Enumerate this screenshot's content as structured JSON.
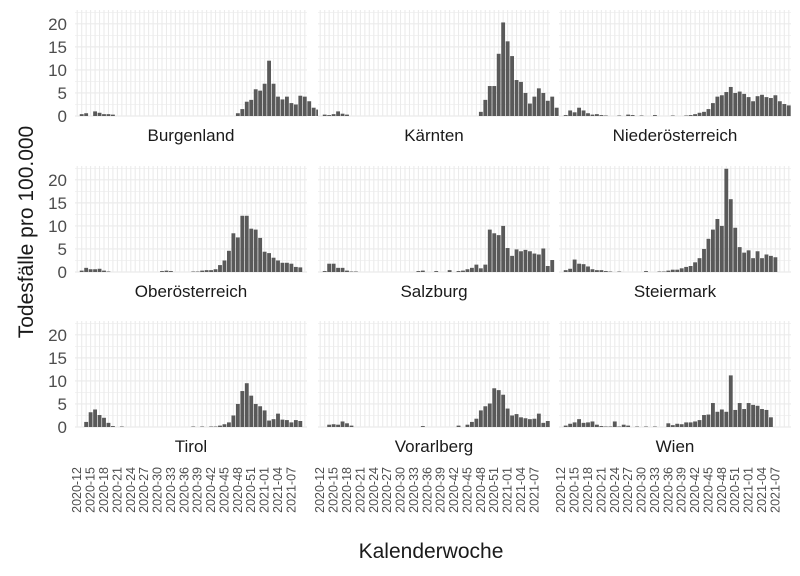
{
  "chart_data": {
    "type": "bar",
    "layout": "facet-grid-3x3",
    "ylabel": "Todesfälle pro 100.000",
    "xlabel": "Kalenderwoche",
    "ylim": [
      0,
      23
    ],
    "yticks": [
      0,
      5,
      10,
      15,
      20
    ],
    "grid": true,
    "x_tick_labels": [
      "2020-12",
      "2020-15",
      "2020-18",
      "2020-21",
      "2020-24",
      "2020-27",
      "2020-30",
      "2020-33",
      "2020-36",
      "2020-39",
      "2020-42",
      "2020-45",
      "2020-48",
      "2020-51",
      "2021-01",
      "2021-04",
      "2021-07"
    ],
    "x_tick_index": [
      0,
      3,
      6,
      9,
      12,
      15,
      18,
      21,
      24,
      27,
      30,
      33,
      36,
      39,
      42,
      45,
      48
    ],
    "week_count": 52,
    "colors": {
      "bar": "#595959",
      "panel_bg": "#ffffff",
      "grid": "#ebebeb",
      "text": "#1a1a1a",
      "axis_text": "#4d4d4d"
    },
    "series": [
      {
        "name": "Burgenland",
        "values": [
          0,
          0.4,
          0.6,
          0,
          1.0,
          0.7,
          0.4,
          0.4,
          0.3,
          0,
          0,
          0,
          0,
          0,
          0,
          0,
          0,
          0,
          0,
          0,
          0,
          0,
          0,
          0,
          0,
          0,
          0,
          0,
          0,
          0,
          0,
          0,
          0,
          0,
          0,
          0,
          0.6,
          1.5,
          3.1,
          3.5,
          5.8,
          5.5,
          7.0,
          12.0,
          7.0,
          4.2,
          3.6,
          4.2,
          2.8,
          2.5,
          4.4,
          4.2,
          3.2,
          1.8,
          1.4,
          1.1
        ]
      },
      {
        "name": "Kärnten",
        "values": [
          0,
          0.3,
          0.2,
          0.4,
          1.0,
          0.5,
          0.3,
          0,
          0,
          0,
          0,
          0,
          0,
          0,
          0,
          0,
          0,
          0,
          0,
          0,
          0,
          0,
          0,
          0,
          0,
          0,
          0,
          0,
          0,
          0,
          0,
          0,
          0,
          0,
          0,
          0,
          0.9,
          3.5,
          6.5,
          6.5,
          13.5,
          20.3,
          16.2,
          13.0,
          7.8,
          7.4,
          5.0,
          2.7,
          4.2,
          6.0,
          5.0,
          3.3,
          4.2,
          1.8,
          1.7
        ]
      },
      {
        "name": "Niederösterreich",
        "values": [
          0,
          0.2,
          1.2,
          0.8,
          1.8,
          1.2,
          0.6,
          0.3,
          0.4,
          0.2,
          0.1,
          0,
          0,
          0.1,
          0,
          0.3,
          0.2,
          0,
          0.1,
          0,
          0,
          0.2,
          0,
          0,
          0,
          0.1,
          0,
          0,
          0.1,
          0.2,
          0.4,
          0.7,
          0.9,
          1.5,
          2.8,
          4.2,
          4.5,
          5.2,
          6.3,
          5.0,
          5.3,
          4.8,
          4.1,
          3.2,
          4.3,
          4.6,
          4.1,
          3.9,
          4.5,
          3.2,
          2.6,
          2.3
        ]
      },
      {
        "name": "Oberösterreich",
        "values": [
          0,
          0.3,
          0.9,
          0.6,
          0.6,
          0.7,
          0.3,
          0.1,
          0,
          0,
          0,
          0,
          0,
          0,
          0,
          0,
          0,
          0,
          0,
          0.2,
          0.3,
          0.2,
          0,
          0,
          0,
          0,
          0.1,
          0.1,
          0.3,
          0.4,
          0.4,
          0.6,
          1.5,
          2.5,
          4.6,
          8.4,
          7.5,
          12.2,
          12.2,
          9.4,
          9.2,
          7.4,
          4.4,
          4.1,
          3.1,
          2.5,
          2.0,
          2.0,
          1.8,
          1.1,
          1.0
        ]
      },
      {
        "name": "Salzburg",
        "values": [
          0,
          0.2,
          1.8,
          1.8,
          0.9,
          0.9,
          0.3,
          0.1,
          0.1,
          0,
          0,
          0,
          0,
          0,
          0,
          0,
          0,
          0,
          0,
          0,
          0,
          0,
          0.2,
          0.3,
          0,
          0,
          0.2,
          0,
          0,
          0.4,
          0,
          0.2,
          0.3,
          0.6,
          0.9,
          1.6,
          0.8,
          1.6,
          9.2,
          8.4,
          8.0,
          10.0,
          5.2,
          3.5,
          4.9,
          4.5,
          4.8,
          4.5,
          4.0,
          3.8,
          5.1,
          1.3,
          2.6
        ]
      },
      {
        "name": "Steiermark",
        "values": [
          0,
          0.4,
          0.7,
          2.7,
          1.8,
          1.7,
          1.2,
          0.6,
          0.4,
          0.4,
          0.2,
          0.1,
          0,
          0.1,
          0,
          0,
          0,
          0,
          0,
          0.2,
          0,
          0,
          0.1,
          0.1,
          0.3,
          0.5,
          0.5,
          0.8,
          1.1,
          1.3,
          2.1,
          3.0,
          5.0,
          7.2,
          9.2,
          11.5,
          10.0,
          22.4,
          15.8,
          9.6,
          5.4,
          4.2,
          4.7,
          3.0,
          4.5,
          3.0,
          3.8,
          3.5,
          3.2
        ]
      },
      {
        "name": "Tirol",
        "values": [
          0,
          0,
          1.1,
          3.2,
          3.8,
          2.6,
          2.0,
          0.9,
          0.2,
          0,
          0.1,
          0,
          0,
          0,
          0,
          0,
          0,
          0,
          0,
          0,
          0,
          0,
          0,
          0,
          0,
          0,
          0.1,
          0,
          0.1,
          0,
          0.1,
          0.1,
          0.3,
          0.6,
          1.0,
          2.5,
          5.0,
          7.8,
          9.5,
          6.8,
          5.0,
          4.5,
          3.6,
          1.4,
          1.7,
          2.9,
          1.6,
          1.5,
          1.0,
          1.5,
          1.3
        ]
      },
      {
        "name": "Vorarlberg",
        "values": [
          0,
          0,
          0.5,
          0.6,
          0.5,
          1.2,
          0.8,
          0.3,
          0,
          0,
          0,
          0,
          0,
          0,
          0,
          0,
          0,
          0,
          0,
          0,
          0,
          0,
          0,
          0.2,
          0,
          0,
          0,
          0,
          0,
          0,
          0,
          0.3,
          0,
          0.5,
          1.1,
          1.8,
          3.6,
          4.5,
          5.1,
          8.4,
          8.0,
          7.0,
          4.0,
          2.5,
          2.8,
          2.1,
          1.9,
          1.7,
          1.8,
          2.9,
          0.9,
          1.3
        ]
      },
      {
        "name": "Wien",
        "values": [
          0,
          0.3,
          0.7,
          1.0,
          1.7,
          0.9,
          1.0,
          1.2,
          0.5,
          0.2,
          0.1,
          0.1,
          1.2,
          0.1,
          0.5,
          0.3,
          0,
          0.1,
          0,
          0.1,
          0,
          0.1,
          0,
          0,
          0.8,
          0.4,
          0.7,
          0.6,
          1.0,
          1.0,
          1.2,
          1.5,
          2.6,
          2.7,
          5.2,
          3.3,
          3.8,
          3.3,
          11.2,
          3.7,
          5.2,
          3.9,
          5.2,
          4.8,
          4.6,
          3.9,
          3.7,
          2.1
        ]
      }
    ]
  }
}
